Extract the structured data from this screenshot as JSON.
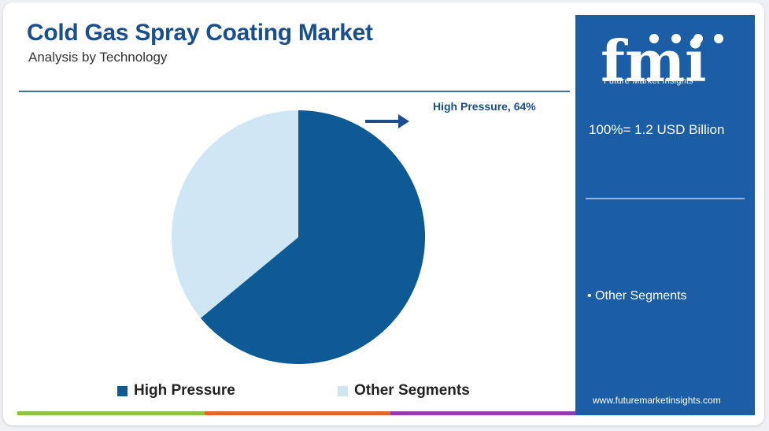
{
  "header": {
    "title": "Cold Gas Spray Coating Market",
    "subtitle": "Analysis by Technology"
  },
  "callout": "High Pressure, 64%",
  "sidebar": {
    "brand": "fmi",
    "brand_caption": "Future Market Insights",
    "total": "100%= 1.2 USD Billion",
    "segment_note": "• Other Segments",
    "website": "www.futuremarketinsights.com"
  },
  "colors": {
    "high_pressure": "#0d5a94",
    "other_segments": "#cfe6f5",
    "panel": "#1b5ea6",
    "bar": [
      "#8bc34a",
      "#e0662f",
      "#8e3fa5"
    ]
  },
  "chart_data": {
    "type": "pie",
    "title": "Cold Gas Spray Coating Market",
    "subtitle": "Analysis by Technology",
    "slices": [
      {
        "label": "High Pressure",
        "value": 64
      },
      {
        "label": "Other Segments",
        "value": 36
      }
    ],
    "legend": [
      "High Pressure",
      "Other Segments"
    ],
    "legend_position": "bottom"
  }
}
